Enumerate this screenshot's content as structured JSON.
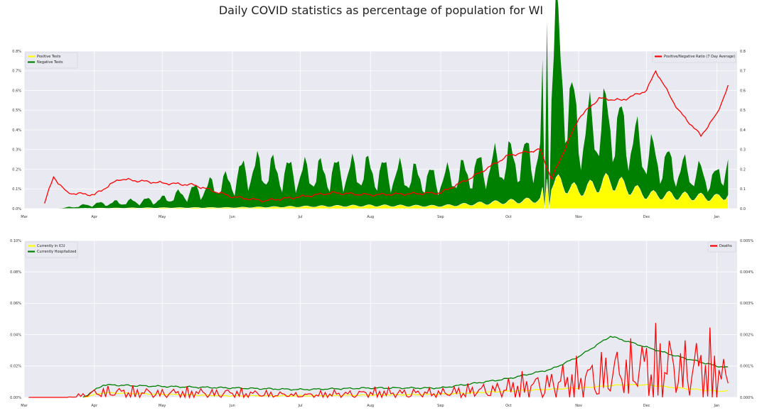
{
  "title": "Daily COVID statistics as percentage of population for WI",
  "colors": {
    "panel_bg": "#e9e9f1",
    "grid": "#ffffff",
    "positive": "#ffff00",
    "negative": "#008000",
    "ratio": "#ff0000",
    "icu": "#ffff00",
    "hospitalized": "#008000",
    "deaths": "#ff0000"
  },
  "chart_data": [
    {
      "type": "area",
      "x_start": "2020-03-01",
      "x_end": "2021-01-10",
      "x_ticks": [
        "Mar",
        "Apr",
        "May",
        "Jun",
        "Jul",
        "Aug",
        "Sep",
        "Oct",
        "Nov",
        "Dec",
        "Jan"
      ],
      "x_tick_dates": [
        "2020-03-01",
        "2020-04-01",
        "2020-05-01",
        "2020-06-01",
        "2020-07-01",
        "2020-08-01",
        "2020-09-01",
        "2020-10-01",
        "2020-11-01",
        "2020-12-01",
        "2021-01-01"
      ],
      "ylim": [
        0,
        0.8
      ],
      "y_ticks": [
        "0.0%",
        "0.1%",
        "0.2%",
        "0.3%",
        "0.4%",
        "0.5%",
        "0.6%",
        "0.7%",
        "0.8%"
      ],
      "y2lim": [
        0,
        0.8
      ],
      "y2_ticks": [
        "0.0",
        "0.1",
        "0.2",
        "0.3",
        "0.4",
        "0.5",
        "0.6",
        "0.7",
        "0.8"
      ],
      "grid": true,
      "legend_left": {
        "placement": "upper-left",
        "entries": [
          "Positive Tests",
          "Negative Tests"
        ]
      },
      "legend_right": {
        "placement": "upper-right",
        "entries": [
          "Positive/Negative Ratio (7 Day Average)"
        ]
      },
      "series": [
        {
          "name": "Positive Tests",
          "stacked": true,
          "points": [
            [
              "2020-03-16",
              0.0
            ],
            [
              "2020-04-01",
              0.002
            ],
            [
              "2020-05-01",
              0.004
            ],
            [
              "2020-06-01",
              0.005
            ],
            [
              "2020-07-01",
              0.01
            ],
            [
              "2020-08-01",
              0.015
            ],
            [
              "2020-09-01",
              0.013
            ],
            [
              "2020-10-01",
              0.035
            ],
            [
              "2020-10-15",
              0.045
            ],
            [
              "2020-10-18",
              0.15
            ],
            [
              "2020-11-01",
              0.09
            ],
            [
              "2020-11-15",
              0.14
            ],
            [
              "2020-12-01",
              0.07
            ],
            [
              "2020-12-15",
              0.065
            ],
            [
              "2021-01-01",
              0.055
            ],
            [
              "2021-01-06",
              0.07
            ]
          ]
        },
        {
          "name": "Negative Tests",
          "stacked": true,
          "points": [
            [
              "2020-03-16",
              0.0
            ],
            [
              "2020-04-01",
              0.02
            ],
            [
              "2020-05-01",
              0.04
            ],
            [
              "2020-06-01",
              0.13
            ],
            [
              "2020-06-08",
              0.19
            ],
            [
              "2020-07-01",
              0.16
            ],
            [
              "2020-08-01",
              0.17
            ],
            [
              "2020-09-01",
              0.13
            ],
            [
              "2020-10-01",
              0.2
            ],
            [
              "2020-10-15",
              0.22
            ],
            [
              "2020-10-18",
              0.8
            ],
            [
              "2020-11-01",
              0.28
            ],
            [
              "2020-11-15",
              0.3
            ],
            [
              "2020-12-01",
              0.2
            ],
            [
              "2020-12-15",
              0.13
            ],
            [
              "2021-01-01",
              0.09
            ],
            [
              "2021-01-06",
              0.18
            ]
          ]
        },
        {
          "name": "Positive/Negative Ratio (7 Day Average)",
          "axis": "right",
          "points": [
            [
              "2020-03-10",
              0.03
            ],
            [
              "2020-03-14",
              0.16
            ],
            [
              "2020-03-20",
              0.08
            ],
            [
              "2020-04-01",
              0.07
            ],
            [
              "2020-04-12",
              0.15
            ],
            [
              "2020-05-01",
              0.13
            ],
            [
              "2020-05-15",
              0.12
            ],
            [
              "2020-06-01",
              0.06
            ],
            [
              "2020-06-15",
              0.04
            ],
            [
              "2020-07-01",
              0.06
            ],
            [
              "2020-07-15",
              0.08
            ],
            [
              "2020-08-01",
              0.07
            ],
            [
              "2020-09-01",
              0.08
            ],
            [
              "2020-09-15",
              0.16
            ],
            [
              "2020-10-01",
              0.27
            ],
            [
              "2020-10-15",
              0.3
            ],
            [
              "2020-10-20",
              0.15
            ],
            [
              "2020-11-01",
              0.46
            ],
            [
              "2020-11-10",
              0.56
            ],
            [
              "2020-11-20",
              0.55
            ],
            [
              "2020-12-01",
              0.6
            ],
            [
              "2020-12-05",
              0.7
            ],
            [
              "2020-12-15",
              0.5
            ],
            [
              "2020-12-25",
              0.37
            ],
            [
              "2021-01-01",
              0.48
            ],
            [
              "2021-01-06",
              0.62
            ]
          ]
        }
      ]
    },
    {
      "type": "line",
      "x_start": "2020-03-01",
      "x_end": "2021-01-10",
      "x_ticks": [
        "Mar",
        "Apr",
        "May",
        "Jun",
        "Jul",
        "Aug",
        "Sep",
        "Oct",
        "Nov",
        "Dec",
        "Jan"
      ],
      "x_tick_dates": [
        "2020-03-01",
        "2020-04-01",
        "2020-05-01",
        "2020-06-01",
        "2020-07-01",
        "2020-08-01",
        "2020-09-01",
        "2020-10-01",
        "2020-11-01",
        "2020-12-01",
        "2021-01-01"
      ],
      "ylim": [
        0,
        0.1
      ],
      "y_ticks": [
        "0.00%",
        "0.02%",
        "0.04%",
        "0.06%",
        "0.08%",
        "0.10%"
      ],
      "y2lim": [
        0,
        0.005
      ],
      "y2_ticks": [
        "0.000%",
        "0.001%",
        "0.002%",
        "0.003%",
        "0.004%",
        "0.005%"
      ],
      "grid": true,
      "legend_left": {
        "placement": "upper-left",
        "entries": [
          "Currently in ICU",
          "Currently Hospitalized"
        ]
      },
      "legend_right": {
        "placement": "upper-right",
        "entries": [
          "Deaths"
        ]
      },
      "series": [
        {
          "name": "Currently in ICU",
          "points": [
            [
              "2020-03-27",
              0.0
            ],
            [
              "2020-04-05",
              0.003
            ],
            [
              "2020-05-01",
              0.002
            ],
            [
              "2020-06-01",
              0.001
            ],
            [
              "2020-07-01",
              0.001
            ],
            [
              "2020-08-01",
              0.0015
            ],
            [
              "2020-09-01",
              0.002
            ],
            [
              "2020-10-01",
              0.004
            ],
            [
              "2020-11-01",
              0.006
            ],
            [
              "2020-11-20",
              0.008
            ],
            [
              "2020-12-01",
              0.008
            ],
            [
              "2020-12-15",
              0.006
            ],
            [
              "2021-01-01",
              0.004
            ],
            [
              "2021-01-06",
              0.004
            ]
          ]
        },
        {
          "name": "Currently Hospitalized",
          "points": [
            [
              "2020-03-27",
              0.0
            ],
            [
              "2020-04-05",
              0.008
            ],
            [
              "2020-05-01",
              0.007
            ],
            [
              "2020-06-01",
              0.006
            ],
            [
              "2020-07-01",
              0.005
            ],
            [
              "2020-08-01",
              0.006
            ],
            [
              "2020-09-01",
              0.006
            ],
            [
              "2020-10-01",
              0.012
            ],
            [
              "2020-10-20",
              0.018
            ],
            [
              "2020-11-01",
              0.026
            ],
            [
              "2020-11-15",
              0.039
            ],
            [
              "2020-12-01",
              0.032
            ],
            [
              "2020-12-15",
              0.026
            ],
            [
              "2021-01-01",
              0.02
            ],
            [
              "2021-01-06",
              0.019
            ]
          ]
        },
        {
          "name": "Deaths",
          "axis": "right",
          "points": [
            [
              "2020-03-03",
              0.0
            ],
            [
              "2020-03-20",
              0.0
            ],
            [
              "2020-04-05",
              0.00025
            ],
            [
              "2020-05-01",
              0.0002
            ],
            [
              "2020-06-01",
              0.0002
            ],
            [
              "2020-07-01",
              0.0001
            ],
            [
              "2020-08-01",
              0.0002
            ],
            [
              "2020-09-01",
              0.0002
            ],
            [
              "2020-10-01",
              0.0004
            ],
            [
              "2020-11-01",
              0.0008
            ],
            [
              "2020-11-20",
              0.0012
            ],
            [
              "2020-12-01",
              0.0014
            ],
            [
              "2020-12-20",
              0.0014
            ],
            [
              "2021-01-01",
              0.0012
            ],
            [
              "2021-01-06",
              0.0007
            ]
          ]
        }
      ]
    }
  ]
}
